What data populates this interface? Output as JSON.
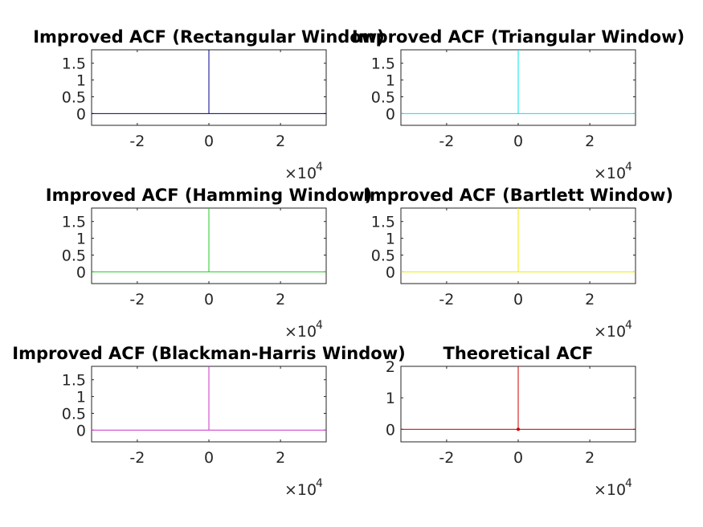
{
  "chart_data": [
    {
      "type": "line",
      "title": "Improved ACF (Rectangular Window)",
      "color": "#00008b",
      "xlim": [
        -32767,
        32767
      ],
      "ylim": [
        -0.35,
        1.9
      ],
      "xticks": [
        -20000,
        0,
        20000
      ],
      "xtick_labels": [
        "-2",
        "0",
        "2"
      ],
      "yticks": [
        0,
        0.5,
        1,
        1.5
      ],
      "ytick_labels": [
        "0",
        "0.5",
        "1",
        "1.5"
      ],
      "x_exponent_base": "×10",
      "x_exponent": "4",
      "series": [
        {
          "x": [
            -32767,
            -1,
            0,
            1,
            32767
          ],
          "y": [
            0,
            0,
            1.9,
            0,
            0
          ]
        }
      ]
    },
    {
      "type": "line",
      "title": "Improved ACF (Triangular Window)",
      "color": "#00e5ee",
      "xlim": [
        -32767,
        32767
      ],
      "ylim": [
        -0.35,
        1.9
      ],
      "xticks": [
        -20000,
        0,
        20000
      ],
      "xtick_labels": [
        "-2",
        "0",
        "2"
      ],
      "yticks": [
        0,
        0.5,
        1,
        1.5
      ],
      "ytick_labels": [
        "0",
        "0.5",
        "1",
        "1.5"
      ],
      "x_exponent_base": "×10",
      "x_exponent": "4",
      "series": [
        {
          "x": [
            -32767,
            -1,
            0,
            1,
            32767
          ],
          "y": [
            0,
            0,
            1.9,
            0,
            0
          ]
        }
      ]
    },
    {
      "type": "line",
      "title": "Improved ACF (Hamming Window)",
      "color": "#22cc22",
      "xlim": [
        -32767,
        32767
      ],
      "ylim": [
        -0.35,
        1.9
      ],
      "xticks": [
        -20000,
        0,
        20000
      ],
      "xtick_labels": [
        "-2",
        "0",
        "2"
      ],
      "yticks": [
        0,
        0.5,
        1,
        1.5
      ],
      "ytick_labels": [
        "0",
        "0.5",
        "1",
        "1.5"
      ],
      "x_exponent_base": "×10",
      "x_exponent": "4",
      "series": [
        {
          "x": [
            -32767,
            -1,
            0,
            1,
            32767
          ],
          "y": [
            0,
            0,
            1.9,
            0,
            0
          ]
        }
      ]
    },
    {
      "type": "line",
      "title": "Improved ACF (Bartlett Window)",
      "color": "#eeee00",
      "xlim": [
        -32767,
        32767
      ],
      "ylim": [
        -0.35,
        1.9
      ],
      "xticks": [
        -20000,
        0,
        20000
      ],
      "xtick_labels": [
        "-2",
        "0",
        "2"
      ],
      "yticks": [
        0,
        0.5,
        1,
        1.5
      ],
      "ytick_labels": [
        "0",
        "0.5",
        "1",
        "1.5"
      ],
      "x_exponent_base": "×10",
      "x_exponent": "4",
      "series": [
        {
          "x": [
            -32767,
            -1,
            0,
            1,
            32767
          ],
          "y": [
            0,
            0,
            1.9,
            0,
            0
          ]
        }
      ]
    },
    {
      "type": "line",
      "title": "Improved ACF (Blackman-Harris Window)",
      "color": "#cc33cc",
      "xlim": [
        -32767,
        32767
      ],
      "ylim": [
        -0.35,
        1.9
      ],
      "xticks": [
        -20000,
        0,
        20000
      ],
      "xtick_labels": [
        "-2",
        "0",
        "2"
      ],
      "yticks": [
        0,
        0.5,
        1,
        1.5
      ],
      "ytick_labels": [
        "0",
        "0.5",
        "1",
        "1.5"
      ],
      "x_exponent_base": "×10",
      "x_exponent": "4",
      "series": [
        {
          "x": [
            -32767,
            -1,
            0,
            1,
            32767
          ],
          "y": [
            0,
            0,
            1.9,
            0,
            0
          ]
        }
      ]
    },
    {
      "type": "line",
      "title": "Theoretical ACF",
      "color": "#cc0000",
      "xlim": [
        -32767,
        32767
      ],
      "ylim": [
        -0.4,
        2
      ],
      "xticks": [
        -20000,
        0,
        20000
      ],
      "xtick_labels": [
        "-2",
        "0",
        "2"
      ],
      "yticks": [
        0,
        1,
        2
      ],
      "ytick_labels": [
        "0",
        "1",
        "2"
      ],
      "x_exponent_base": "×10",
      "x_exponent": "4",
      "marker_at_zero": true,
      "series": [
        {
          "x": [
            -32767,
            -1,
            0,
            1,
            32767
          ],
          "y": [
            0,
            0,
            2,
            0,
            0
          ]
        }
      ]
    }
  ]
}
